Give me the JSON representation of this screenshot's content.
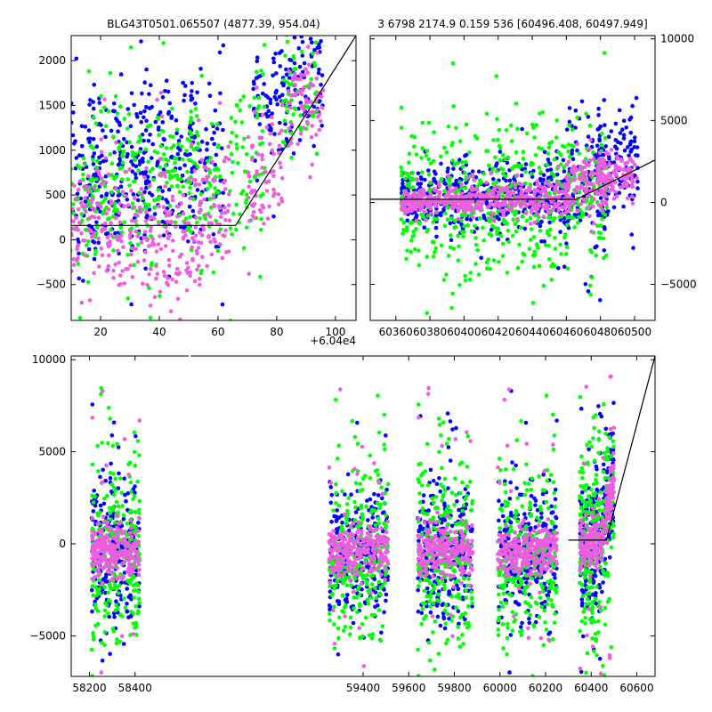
{
  "page": {
    "title_left": "BLG43T0501.065507 (4877.39, 954.04)",
    "title_right": "3 6798 2174.9 0.159 536 [60496.408, 60497.949]",
    "offset_label": "+6.04e4"
  },
  "colors": {
    "series_blue": "#0000ff",
    "series_green": "#00ff00",
    "series_pink": "#ee5ee0",
    "model_line": "#000000"
  },
  "chart_data": [
    {
      "id": "top-left",
      "type": "scatter",
      "title": "BLG43T0501.065507 (4877.39, 954.04)",
      "xlabel": "",
      "ylabel": "",
      "x_offset": 60400,
      "xlim": [
        10,
        107
      ],
      "ylim": [
        -900,
        2280
      ],
      "xticks": [
        20,
        40,
        60,
        80,
        100
      ],
      "xtick_labels": [
        "20",
        "40",
        "60",
        "80",
        "100"
      ],
      "yticks": [
        -500,
        0,
        500,
        1000,
        1500,
        2000
      ],
      "ytick_labels": [
        "−500",
        "0",
        "500",
        "1000",
        "1500",
        "2000"
      ],
      "grid": false,
      "model": {
        "baseline": 160,
        "break_x": 66,
        "end_x": 107,
        "end_y": 2280
      },
      "series": [
        {
          "color": "blue",
          "clusters": [
            [
              14,
              680,
              420
            ],
            [
              22,
              720,
              480
            ],
            [
              30,
              820,
              520
            ],
            [
              38,
              820,
              480
            ],
            [
              47,
              860,
              470
            ],
            [
              56,
              820,
              440
            ],
            [
              78,
              1480,
              380
            ],
            [
              90,
              1800,
              360
            ]
          ]
        },
        {
          "color": "green",
          "clusters": [
            [
              13,
              420,
              380
            ],
            [
              22,
              740,
              380
            ],
            [
              33,
              520,
              500
            ],
            [
              45,
              760,
              380
            ],
            [
              55,
              720,
              420
            ],
            [
              70,
              850,
              500
            ],
            [
              88,
              1700,
              420
            ]
          ]
        },
        {
          "color": "pink",
          "clusters": [
            [
              15,
              300,
              320
            ],
            [
              26,
              180,
              380
            ],
            [
              38,
              0,
              450
            ],
            [
              48,
              -100,
              400
            ],
            [
              58,
              380,
              300
            ],
            [
              76,
              700,
              350
            ],
            [
              90,
              1500,
              260
            ]
          ]
        }
      ]
    },
    {
      "id": "top-right",
      "type": "scatter",
      "title": "3 6798 2174.9 0.159 536 [60496.408, 60497.949]",
      "xlabel": "",
      "ylabel": "",
      "xlim": [
        60345,
        60512
      ],
      "ylim": [
        -7200,
        10200
      ],
      "xticks": [
        60360,
        60380,
        60400,
        60420,
        60440,
        60460,
        60480,
        60500
      ],
      "xtick_labels": [
        "60360",
        "60380",
        "60400",
        "60420",
        "60440",
        "60460",
        "60480",
        "60500"
      ],
      "yticks": [
        -5000,
        0,
        5000,
        10000
      ],
      "ytick_labels": [
        "−5000",
        "0",
        "5000",
        "10000"
      ],
      "grid": false,
      "model": {
        "baseline": 200,
        "break_x": 60466,
        "end_x": 60512,
        "end_y": 2600
      },
      "series": [
        {
          "color": "blue",
          "clusters": [
            [
              60375,
              300,
              900
            ],
            [
              60400,
              400,
              1000
            ],
            [
              60425,
              500,
              1200
            ],
            [
              60450,
              600,
              1200
            ],
            [
              60472,
              1200,
              1800
            ],
            [
              60490,
              2400,
              1500
            ]
          ]
        },
        {
          "color": "green",
          "clusters": [
            [
              60375,
              0,
              1800
            ],
            [
              60400,
              0,
              2200
            ],
            [
              60425,
              200,
              2500
            ],
            [
              60450,
              300,
              2500
            ],
            [
              60472,
              900,
              2500
            ]
          ]
        },
        {
          "color": "pink",
          "clusters": [
            [
              60375,
              150,
              400
            ],
            [
              60400,
              150,
              400
            ],
            [
              60425,
              200,
              500
            ],
            [
              60450,
              250,
              500
            ],
            [
              60472,
              1000,
              900
            ],
            [
              60490,
              1800,
              700
            ]
          ]
        }
      ]
    },
    {
      "id": "bottom",
      "type": "scatter",
      "title": "",
      "xlabel": "",
      "ylabel": "",
      "xlim": [
        58120,
        60680
      ],
      "ylim": [
        -7200,
        10200
      ],
      "xticks": [
        58200,
        58400,
        59400,
        59600,
        59800,
        60000,
        60200,
        60400,
        60600
      ],
      "xtick_labels": [
        "58200",
        "58400",
        "59400",
        "59600",
        "59800",
        "60000",
        "60200",
        "60400",
        "60600"
      ],
      "yticks": [
        -5000,
        0,
        5000,
        10000
      ],
      "ytick_labels": [
        "−5000",
        "0",
        "5000",
        "10000"
      ],
      "grid": false,
      "seasons": [
        [
          58210,
          58420
        ],
        [
          59250,
          59510
        ],
        [
          59640,
          59880
        ],
        [
          59990,
          60250
        ],
        [
          60350,
          60500
        ]
      ],
      "model": {
        "start_x": 60300,
        "baseline": 200,
        "break_x": 60466,
        "end_x": 60680,
        "end_y": 10200
      },
      "series": [
        {
          "color": "blue",
          "spread": 1800
        },
        {
          "color": "green",
          "spread": 2600
        },
        {
          "color": "pink",
          "spread": 700
        }
      ]
    }
  ]
}
